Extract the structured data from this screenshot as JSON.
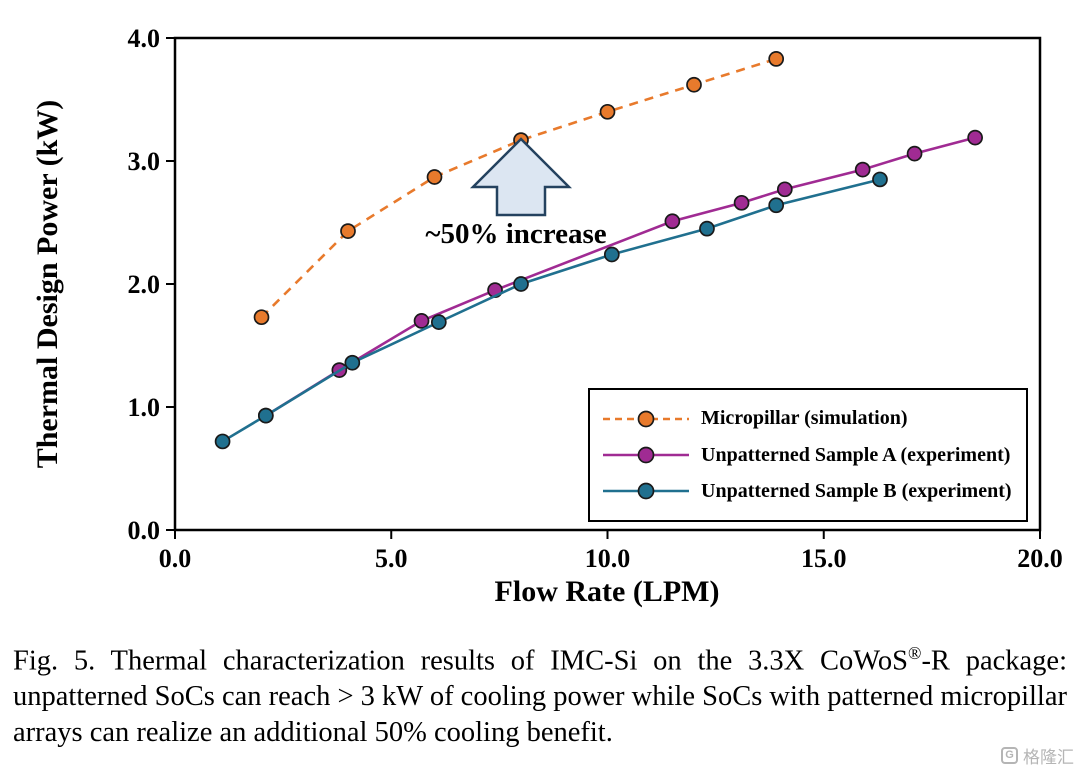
{
  "chart_data": {
    "type": "line",
    "title": "",
    "xlabel": "Flow Rate (LPM)",
    "ylabel": "Thermal Design Power (kW)",
    "xlim": [
      0,
      20
    ],
    "ylim": [
      0,
      4
    ],
    "xticks": [
      "0.0",
      "5.0",
      "10.0",
      "15.0",
      "20.0"
    ],
    "yticks": [
      "0.0",
      "1.0",
      "2.0",
      "3.0",
      "4.0"
    ],
    "grid": false,
    "legend_position": "inside-lower-right",
    "annotation": "~50% increase",
    "arrow_fill": "#dce6f2",
    "series": [
      {
        "name": "Micropillar (simulation)",
        "color": "#e87a2c",
        "line_style": "dashed",
        "marker": "circle",
        "points": [
          [
            2.0,
            1.73
          ],
          [
            4.0,
            2.43
          ],
          [
            6.0,
            2.87
          ],
          [
            8.0,
            3.17
          ],
          [
            10.0,
            3.4
          ],
          [
            12.0,
            3.62
          ],
          [
            13.9,
            3.83
          ]
        ]
      },
      {
        "name": "Unpatterned Sample A (experiment)",
        "color": "#a02b93",
        "line_style": "solid",
        "marker": "circle",
        "points": [
          [
            2.1,
            0.93
          ],
          [
            3.8,
            1.3
          ],
          [
            5.7,
            1.7
          ],
          [
            7.4,
            1.95
          ],
          [
            11.5,
            2.51
          ],
          [
            13.1,
            2.66
          ],
          [
            14.1,
            2.77
          ],
          [
            15.9,
            2.93
          ],
          [
            17.1,
            3.06
          ],
          [
            18.5,
            3.19
          ]
        ]
      },
      {
        "name": "Unpatterned Sample B (experiment)",
        "color": "#20708f",
        "line_style": "solid",
        "marker": "circle",
        "points": [
          [
            1.1,
            0.72
          ],
          [
            2.1,
            0.93
          ],
          [
            4.1,
            1.36
          ],
          [
            6.1,
            1.69
          ],
          [
            8.0,
            2.0
          ],
          [
            10.1,
            2.24
          ],
          [
            12.3,
            2.45
          ],
          [
            13.9,
            2.64
          ],
          [
            16.3,
            2.85
          ]
        ]
      }
    ]
  },
  "caption": {
    "part1": "Fig. 5. Thermal characterization results of IMC-Si on the 3.3X CoWoS",
    "sup": "®",
    "part2": "-R package: unpatterned SoCs can reach > 3 kW of cooling power while SoCs with patterned micropillar arrays can realize an additional 50% cooling benefit."
  },
  "watermark": {
    "icon_glyph": "G",
    "text": "格隆汇"
  }
}
